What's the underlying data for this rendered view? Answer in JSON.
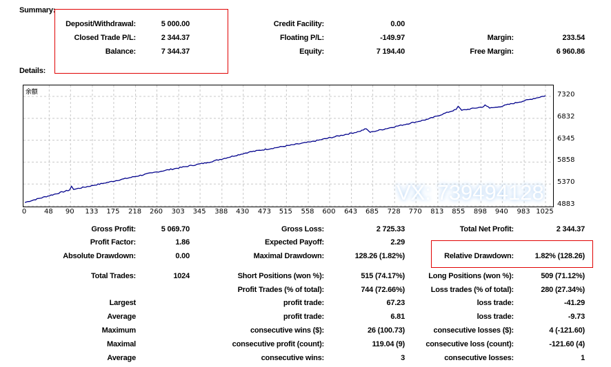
{
  "summary": {
    "title": "Summary:",
    "rows": [
      [
        "Deposit/Withdrawal:",
        "5 000.00",
        "Credit Facility:",
        "0.00",
        "",
        ""
      ],
      [
        "Closed Trade P/L:",
        "2 344.37",
        "Floating P/L:",
        "-149.97",
        "Margin:",
        "233.54"
      ],
      [
        "Balance:",
        "7 344.37",
        "Equity:",
        "7 194.40",
        "Free Margin:",
        "6 960.86"
      ]
    ]
  },
  "details": {
    "title": "Details:",
    "rows": [
      [
        "Gross Profit:",
        "5 069.70",
        "Gross Loss:",
        "2 725.33",
        "Total Net Profit:",
        "2 344.37"
      ],
      [
        "Profit Factor:",
        "1.86",
        "Expected Payoff:",
        "2.29",
        "",
        ""
      ],
      [
        "Absolute Drawdown:",
        "0.00",
        "Maximal Drawdown:",
        "128.26 (1.82%)",
        "Relative Drawdown:",
        "1.82% (128.26)"
      ],
      [
        "Total Trades:",
        "1024",
        "Short Positions (won %):",
        "515 (74.17%)",
        "Long Positions (won %):",
        "509 (71.12%)"
      ],
      [
        "",
        "",
        "Profit Trades (% of total):",
        "744 (72.66%)",
        "Loss trades (% of total):",
        "280 (27.34%)"
      ],
      [
        "Largest",
        "",
        "profit trade:",
        "67.23",
        "loss trade:",
        "-41.29"
      ],
      [
        "Average",
        "",
        "profit trade:",
        "6.81",
        "loss trade:",
        "-9.73"
      ],
      [
        "Maximum",
        "",
        "consecutive wins ($):",
        "26 (100.73)",
        "consecutive losses ($):",
        "4 (-121.60)"
      ],
      [
        "Maximal",
        "",
        "consecutive profit (count):",
        "119.04 (9)",
        "consecutive loss (count):",
        "-121.60 (4)"
      ],
      [
        "Average",
        "",
        "consecutive wins:",
        "3",
        "consecutive losses:",
        "1"
      ]
    ]
  },
  "watermark": "VX: 739494128",
  "chart_data": {
    "type": "line",
    "title": "余额",
    "line_color": "#00008b",
    "x_ticks": [
      "0",
      "48",
      "90",
      "133",
      "175",
      "218",
      "260",
      "303",
      "345",
      "388",
      "430",
      "473",
      "515",
      "558",
      "600",
      "643",
      "685",
      "728",
      "770",
      "813",
      "855",
      "898",
      "940",
      "983",
      "1025"
    ],
    "y_ticks": [
      "7320",
      "6832",
      "6345",
      "5858",
      "5370",
      "4883"
    ],
    "xlim": [
      0,
      1025
    ],
    "ylim": [
      4883,
      7320
    ],
    "grid": true,
    "points": [
      [
        0,
        4960
      ],
      [
        88,
        5236
      ],
      [
        92,
        5320
      ],
      [
        96,
        5250
      ],
      [
        156,
        5389
      ],
      [
        251,
        5619
      ],
      [
        360,
        5849
      ],
      [
        441,
        6079
      ],
      [
        563,
        6308
      ],
      [
        658,
        6538
      ],
      [
        672,
        6600
      ],
      [
        680,
        6520
      ],
      [
        686,
        6538
      ],
      [
        794,
        6814
      ],
      [
        849,
        7029
      ],
      [
        853,
        7100
      ],
      [
        860,
        7010
      ],
      [
        903,
        7090
      ],
      [
        906,
        7130
      ],
      [
        915,
        7060
      ],
      [
        930,
        7080
      ],
      [
        1025,
        7335
      ]
    ]
  }
}
